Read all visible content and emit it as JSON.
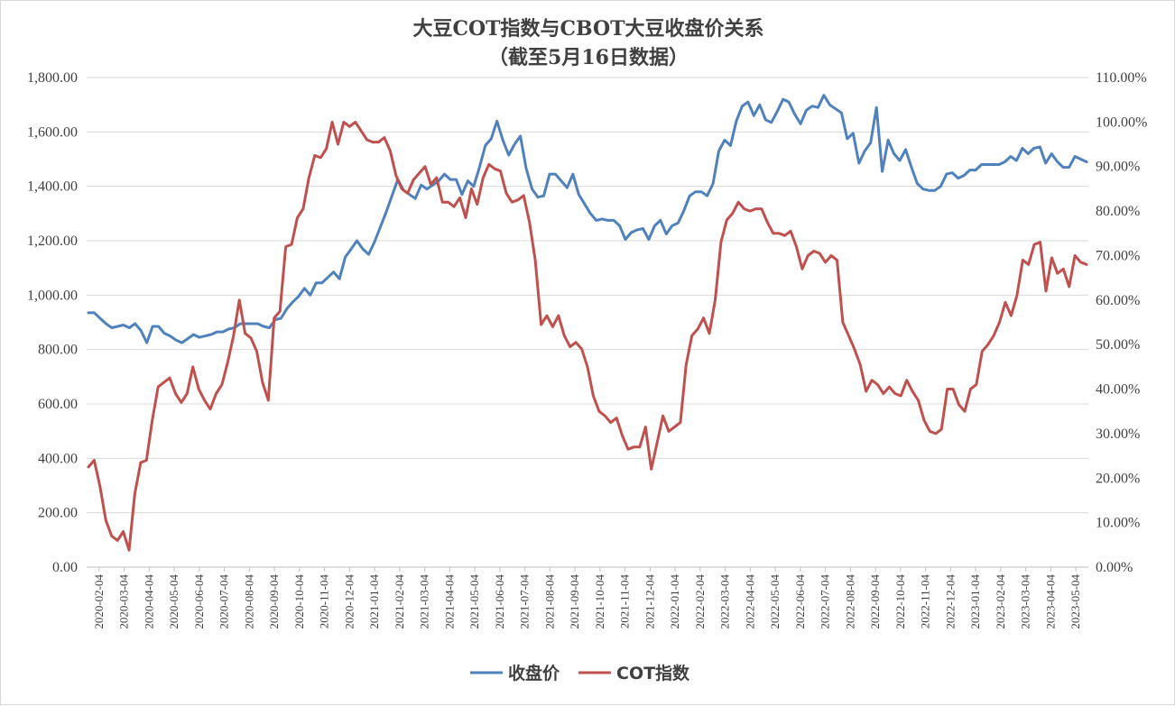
{
  "chart_data": {
    "type": "line",
    "title": "大豆COT指数与CBOT大豆收盘价关系",
    "subtitle": "（截至5月16日数据）",
    "legend_position": "bottom",
    "grid": true,
    "y_left": {
      "ylim": [
        0,
        1800
      ],
      "ticks": [
        "0.00",
        "200.00",
        "400.00",
        "600.00",
        "800.00",
        "1,000.00",
        "1,200.00",
        "1,400.00",
        "1,600.00",
        "1,800.00"
      ]
    },
    "y_right": {
      "ylim": [
        0,
        110
      ],
      "ticks": [
        "0.00%",
        "10.00%",
        "20.00%",
        "30.00%",
        "40.00%",
        "50.00%",
        "60.00%",
        "70.00%",
        "80.00%",
        "90.00%",
        "100.00%",
        "110.00%"
      ]
    },
    "x_ticks": [
      "2020-02-04",
      "2020-03-04",
      "2020-04-04",
      "2020-05-04",
      "2020-06-04",
      "2020-07-04",
      "2020-08-04",
      "2020-09-04",
      "2020-10-04",
      "2020-11-04",
      "2020-12-04",
      "2021-01-04",
      "2021-02-04",
      "2021-03-04",
      "2021-04-04",
      "2021-05-04",
      "2021-06-04",
      "2021-07-04",
      "2021-08-04",
      "2021-09-04",
      "2021-10-04",
      "2021-11-04",
      "2021-12-04",
      "2022-01-04",
      "2022-02-04",
      "2022-03-04",
      "2022-04-04",
      "2022-05-04",
      "2022-06-04",
      "2022-07-04",
      "2022-08-04",
      "2022-09-04",
      "2022-10-04",
      "2022-11-04",
      "2022-12-04",
      "2023-01-04",
      "2023-02-04",
      "2023-03-04",
      "2023-04-04",
      "2023-05-04"
    ],
    "series": [
      {
        "name": "收盘价",
        "axis": "left",
        "color": "#4f81bd",
        "values": [
          935,
          935,
          915,
          895,
          880,
          885,
          890,
          880,
          895,
          870,
          825,
          885,
          885,
          860,
          850,
          835,
          825,
          840,
          855,
          845,
          850,
          855,
          865,
          865,
          875,
          880,
          895,
          895,
          895,
          895,
          885,
          880,
          910,
          915,
          950,
          975,
          995,
          1025,
          1000,
          1045,
          1045,
          1065,
          1085,
          1060,
          1140,
          1170,
          1200,
          1170,
          1150,
          1195,
          1250,
          1305,
          1365,
          1425,
          1385,
          1370,
          1355,
          1405,
          1390,
          1405,
          1420,
          1445,
          1425,
          1425,
          1370,
          1420,
          1400,
          1470,
          1550,
          1575,
          1640,
          1570,
          1515,
          1555,
          1585,
          1465,
          1390,
          1360,
          1365,
          1445,
          1445,
          1420,
          1395,
          1445,
          1370,
          1335,
          1300,
          1275,
          1280,
          1275,
          1275,
          1255,
          1205,
          1230,
          1240,
          1245,
          1205,
          1255,
          1275,
          1225,
          1255,
          1265,
          1310,
          1365,
          1380,
          1380,
          1365,
          1410,
          1530,
          1570,
          1550,
          1640,
          1695,
          1710,
          1660,
          1700,
          1645,
          1635,
          1675,
          1720,
          1710,
          1665,
          1630,
          1680,
          1695,
          1690,
          1735,
          1700,
          1685,
          1670,
          1575,
          1595,
          1485,
          1530,
          1560,
          1690,
          1455,
          1570,
          1520,
          1495,
          1535,
          1470,
          1410,
          1390,
          1385,
          1385,
          1400,
          1445,
          1450,
          1430,
          1440,
          1460,
          1460,
          1480,
          1480,
          1480,
          1480,
          1490,
          1510,
          1495,
          1540,
          1520,
          1540,
          1545,
          1485,
          1520,
          1490,
          1470,
          1470,
          1510,
          1500,
          1490
        ]
      },
      {
        "name": "COT指数",
        "axis": "right",
        "color": "#c0504d",
        "values": [
          22.5,
          24,
          18,
          10.5,
          7,
          6,
          8,
          3.8,
          16.5,
          23.5,
          24,
          33,
          40.5,
          41.5,
          42.5,
          39,
          37,
          39,
          45,
          40,
          37.5,
          35.5,
          39,
          41,
          46,
          52,
          60,
          52.5,
          51.5,
          48.5,
          41.5,
          37.5,
          56,
          57.5,
          72,
          72.5,
          78.5,
          80.5,
          87.5,
          92.5,
          92,
          94,
          100,
          95,
          100,
          99,
          100,
          98,
          96,
          95.5,
          95.5,
          96.5,
          93.5,
          88,
          85,
          84,
          87,
          88.5,
          90,
          86,
          87.5,
          82,
          82,
          81,
          83,
          78.5,
          85,
          81.5,
          87.5,
          90.5,
          89.5,
          89,
          84,
          82,
          82.5,
          83.5,
          77.5,
          69,
          54.5,
          56.5,
          54,
          56.5,
          52,
          49.5,
          50.5,
          49,
          45,
          38.5,
          35,
          34,
          32.5,
          33.5,
          29.5,
          26.5,
          27,
          27,
          31.5,
          22,
          28,
          34,
          30.5,
          31.5,
          32.5,
          45.5,
          52,
          53.5,
          56,
          52.5,
          60,
          73,
          78,
          79.5,
          82,
          80.5,
          80,
          80.5,
          80.5,
          77.5,
          75,
          75,
          74.5,
          75.5,
          72,
          67,
          70,
          71,
          70.5,
          68.5,
          70,
          69,
          55,
          52,
          49,
          45.5,
          39.5,
          42,
          41,
          39,
          40.5,
          39,
          38.5,
          42,
          39.5,
          37.5,
          33,
          30.5,
          30,
          31,
          40,
          40,
          36.5,
          35,
          40,
          41,
          48.5,
          50,
          52,
          55,
          59.5,
          56.5,
          61,
          69,
          68,
          72.5,
          73,
          62,
          69.5,
          66,
          67,
          63,
          70,
          68.5,
          68
        ]
      }
    ]
  }
}
